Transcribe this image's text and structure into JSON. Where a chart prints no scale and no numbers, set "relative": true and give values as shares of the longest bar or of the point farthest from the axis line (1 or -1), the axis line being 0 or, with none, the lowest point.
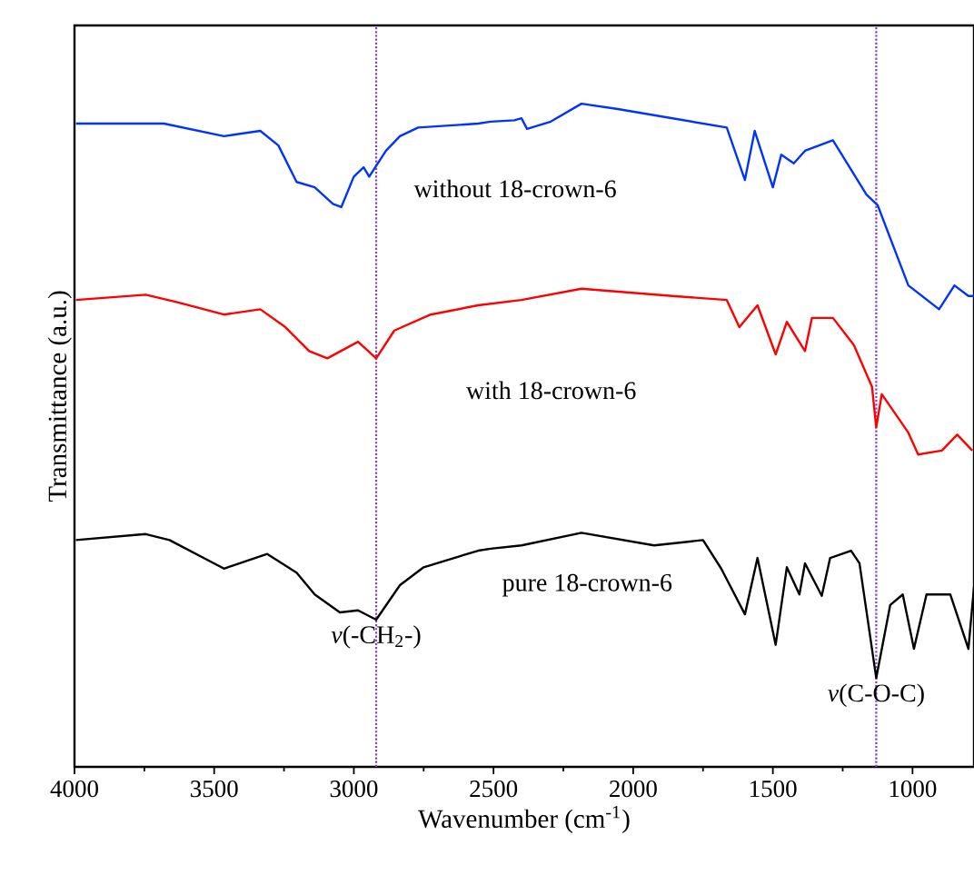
{
  "chart_data": {
    "type": "line",
    "relative": true,
    "xlabel": "Wavenumber (cm$^{-1}$)",
    "ylabel": "Transmittance (a.u.)",
    "xlim": [
      4000,
      780
    ],
    "xticks": [
      4000,
      3500,
      3000,
      2500,
      2000,
      1500,
      1000
    ],
    "legend": false,
    "grid": false,
    "marker": "none",
    "line_style": "solid",
    "series": [
      {
        "name": "without 18-crown-6",
        "color": "#0033ff",
        "x": [
          3995,
          3680,
          3465,
          3335,
          3270,
          3205,
          3140,
          3075,
          3045,
          3000,
          2965,
          2945,
          2885,
          2835,
          2770,
          2555,
          2510,
          2425,
          2400,
          2380,
          2295,
          2185,
          2055,
          1860,
          1665,
          1600,
          1565,
          1500,
          1470,
          1425,
          1385,
          1285,
          1165,
          1125,
          1015,
          905,
          850,
          800,
          780
        ],
        "values": [
          0.97,
          0.97,
          0.951,
          0.959,
          0.937,
          0.882,
          0.874,
          0.849,
          0.844,
          0.89,
          0.904,
          0.89,
          0.929,
          0.951,
          0.964,
          0.97,
          0.973,
          0.975,
          0.978,
          0.962,
          0.973,
          1.0,
          0.992,
          0.978,
          0.964,
          0.885,
          0.959,
          0.874,
          0.923,
          0.91,
          0.929,
          0.945,
          0.863,
          0.847,
          0.726,
          0.69,
          0.726,
          0.71,
          0.71
        ]
      },
      {
        "name": "with 18-crown-6",
        "color": "#ff0000",
        "x": [
          3995,
          3745,
          3635,
          3465,
          3335,
          3245,
          3160,
          3095,
          2985,
          2920,
          2855,
          2725,
          2555,
          2400,
          2185,
          1860,
          1665,
          1620,
          1555,
          1490,
          1450,
          1385,
          1360,
          1285,
          1210,
          1145,
          1130,
          1110,
          1015,
          980,
          895,
          840,
          786
        ],
        "values": [
          0.704,
          0.712,
          0.701,
          0.682,
          0.69,
          0.663,
          0.627,
          0.616,
          0.641,
          0.616,
          0.658,
          0.682,
          0.696,
          0.704,
          0.721,
          0.71,
          0.704,
          0.663,
          0.696,
          0.622,
          0.671,
          0.627,
          0.677,
          0.677,
          0.636,
          0.573,
          0.512,
          0.562,
          0.504,
          0.471,
          0.477,
          0.501,
          0.477
        ]
      },
      {
        "name": "pure 18-crown-6",
        "color": "#000000",
        "x": [
          3995,
          3745,
          3660,
          3465,
          3310,
          3205,
          3140,
          3050,
          2985,
          2920,
          2835,
          2750,
          2555,
          2510,
          2400,
          2185,
          1925,
          1750,
          1685,
          1600,
          1555,
          1490,
          1450,
          1405,
          1385,
          1325,
          1295,
          1220,
          1190,
          1130,
          1080,
          1035,
          995,
          950,
          865,
          800,
          780
        ],
        "values": [
          0.342,
          0.351,
          0.342,
          0.299,
          0.321,
          0.293,
          0.26,
          0.233,
          0.236,
          0.222,
          0.274,
          0.301,
          0.326,
          0.329,
          0.334,
          0.353,
          0.334,
          0.342,
          0.299,
          0.23,
          0.315,
          0.184,
          0.301,
          0.26,
          0.307,
          0.258,
          0.315,
          0.326,
          0.307,
          0.134,
          0.244,
          0.26,
          0.178,
          0.26,
          0.26,
          0.178,
          0.271
        ]
      }
    ],
    "ref_lines": [
      {
        "axis": "x",
        "value": 2920,
        "color": "#8040c0",
        "line_style": "dotted"
      },
      {
        "axis": "x",
        "value": 1130,
        "color": "#8040c0",
        "line_style": "dotted"
      }
    ],
    "annotations": [
      {
        "text": "*ν*(-CH$_{2}$-)",
        "x": 2920,
        "y": 0.222
      },
      {
        "text": "*ν*(C-O-C)",
        "x": 1130,
        "y": 0.134
      }
    ]
  }
}
